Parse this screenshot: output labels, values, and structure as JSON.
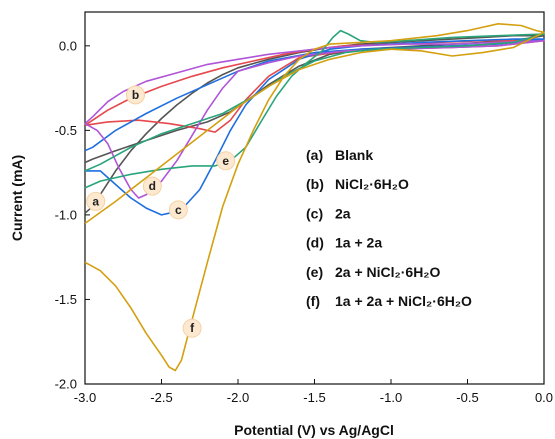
{
  "chart_data": {
    "type": "line",
    "title": "",
    "xlabel": "Potential (V) vs Ag/AgCl",
    "ylabel": "Current (mA)",
    "xlim": [
      -3.0,
      0.0
    ],
    "ylim": [
      -2.0,
      0.2
    ],
    "x_ticks": [
      -3.0,
      -2.5,
      -2.0,
      -1.5,
      -1.0,
      -0.5,
      0.0
    ],
    "x_tick_labels": [
      "-3.0",
      "-2.5",
      "-2.0",
      "-1.5",
      "-1.0",
      "-0.5",
      "0.0"
    ],
    "y_ticks": [
      0.0,
      -0.5,
      -1.0,
      -1.5,
      -2.0
    ],
    "y_tick_labels": [
      "0.0",
      "-0.5",
      "-1.0",
      "-1.5",
      "-2.0"
    ],
    "grid": false,
    "legend_position": "right",
    "legend": [
      {
        "letter": "(a)",
        "text": "Blank"
      },
      {
        "letter": "(b)",
        "text": "NiCl₂·6H₂O"
      },
      {
        "letter": "(c)",
        "text": "2a"
      },
      {
        "letter": "(d)",
        "text": "1a + 2a"
      },
      {
        "letter": "(e)",
        "text": "2a + NiCl₂·6H₂O"
      },
      {
        "letter": "(f)",
        "text": "1a + 2a  + NiCl₂·6H₂O"
      }
    ],
    "series": [
      {
        "label": "a",
        "color": "#555555",
        "label_at": [
          -2.93,
          -0.92
        ],
        "points": [
          [
            -3.0,
            -0.99
          ],
          [
            -2.95,
            -0.95
          ],
          [
            -2.9,
            -0.88
          ],
          [
            -2.8,
            -0.74
          ],
          [
            -2.7,
            -0.62
          ],
          [
            -2.6,
            -0.52
          ],
          [
            -2.5,
            -0.43
          ],
          [
            -2.4,
            -0.35
          ],
          [
            -2.3,
            -0.28
          ],
          [
            -2.2,
            -0.22
          ],
          [
            -2.1,
            -0.17
          ],
          [
            -2.0,
            -0.13
          ],
          [
            -1.8,
            -0.08
          ],
          [
            -1.6,
            -0.04
          ],
          [
            -1.4,
            -0.01
          ],
          [
            -1.2,
            0.01
          ],
          [
            -1.0,
            0.02
          ],
          [
            -0.8,
            0.03
          ],
          [
            -0.6,
            0.04
          ],
          [
            -0.4,
            0.05
          ],
          [
            -0.2,
            0.06
          ],
          [
            0.0,
            0.06
          ],
          [
            -0.2,
            0.03
          ],
          [
            -0.4,
            0.02
          ],
          [
            -0.6,
            0.01
          ],
          [
            -0.8,
            0.0
          ],
          [
            -1.0,
            -0.01
          ],
          [
            -1.2,
            -0.02
          ],
          [
            -1.4,
            -0.05
          ],
          [
            -1.6,
            -0.12
          ],
          [
            -1.8,
            -0.23
          ],
          [
            -1.95,
            -0.33
          ],
          [
            -2.05,
            -0.39
          ],
          [
            -2.2,
            -0.45
          ],
          [
            -2.4,
            -0.5
          ],
          [
            -2.6,
            -0.56
          ],
          [
            -2.8,
            -0.62
          ],
          [
            -2.95,
            -0.67
          ],
          [
            -3.0,
            -0.69
          ]
        ]
      },
      {
        "label": "b",
        "color": "#e5484d",
        "label_at": [
          -2.67,
          -0.29
        ],
        "points": [
          [
            -3.0,
            -0.47
          ],
          [
            -2.95,
            -0.44
          ],
          [
            -2.85,
            -0.38
          ],
          [
            -2.7,
            -0.31
          ],
          [
            -2.5,
            -0.24
          ],
          [
            -2.3,
            -0.18
          ],
          [
            -2.1,
            -0.13
          ],
          [
            -1.9,
            -0.09
          ],
          [
            -1.7,
            -0.05
          ],
          [
            -1.5,
            -0.02
          ],
          [
            -1.3,
            0.0
          ],
          [
            -1.0,
            0.01
          ],
          [
            -0.7,
            0.02
          ],
          [
            -0.4,
            0.03
          ],
          [
            -0.2,
            0.03
          ],
          [
            0.0,
            0.03
          ],
          [
            -0.3,
            0.0
          ],
          [
            -0.6,
            -0.01
          ],
          [
            -1.0,
            -0.02
          ],
          [
            -1.3,
            -0.03
          ],
          [
            -1.6,
            -0.07
          ],
          [
            -1.8,
            -0.18
          ],
          [
            -1.95,
            -0.32
          ],
          [
            -2.05,
            -0.44
          ],
          [
            -2.15,
            -0.51
          ],
          [
            -2.25,
            -0.49
          ],
          [
            -2.45,
            -0.46
          ],
          [
            -2.65,
            -0.44
          ],
          [
            -2.85,
            -0.45
          ],
          [
            -3.0,
            -0.47
          ]
        ]
      },
      {
        "label": "c",
        "color": "#1f6fe0",
        "label_at": [
          -2.39,
          -0.97
        ],
        "points": [
          [
            -3.0,
            -0.74
          ],
          [
            -2.9,
            -0.74
          ],
          [
            -2.8,
            -0.82
          ],
          [
            -2.7,
            -0.9
          ],
          [
            -2.6,
            -0.96
          ],
          [
            -2.5,
            -1.0
          ],
          [
            -2.45,
            -0.99
          ],
          [
            -2.35,
            -0.95
          ],
          [
            -2.25,
            -0.85
          ],
          [
            -2.15,
            -0.68
          ],
          [
            -2.05,
            -0.5
          ],
          [
            -1.95,
            -0.35
          ],
          [
            -1.8,
            -0.2
          ],
          [
            -1.6,
            -0.08
          ],
          [
            -1.4,
            -0.02
          ],
          [
            -1.2,
            0.0
          ],
          [
            -1.0,
            0.01
          ],
          [
            -0.8,
            0.02
          ],
          [
            -0.5,
            0.03
          ],
          [
            -0.2,
            0.04
          ],
          [
            0.0,
            0.04
          ],
          [
            -0.3,
            0.01
          ],
          [
            -0.6,
            0.0
          ],
          [
            -0.9,
            -0.01
          ],
          [
            -1.2,
            -0.02
          ],
          [
            -1.5,
            -0.04
          ],
          [
            -1.8,
            -0.09
          ],
          [
            -2.0,
            -0.15
          ],
          [
            -2.2,
            -0.23
          ],
          [
            -2.4,
            -0.31
          ],
          [
            -2.6,
            -0.4
          ],
          [
            -2.8,
            -0.5
          ],
          [
            -2.95,
            -0.6
          ],
          [
            -3.0,
            -0.62
          ]
        ]
      },
      {
        "label": "d",
        "color": "#b055d8",
        "label_at": [
          -2.56,
          -0.83
        ],
        "points": [
          [
            -3.0,
            -0.46
          ],
          [
            -2.95,
            -0.42
          ],
          [
            -2.85,
            -0.33
          ],
          [
            -2.75,
            -0.27
          ],
          [
            -2.6,
            -0.21
          ],
          [
            -2.4,
            -0.16
          ],
          [
            -2.2,
            -0.11
          ],
          [
            -2.0,
            -0.08
          ],
          [
            -1.8,
            -0.05
          ],
          [
            -1.6,
            -0.03
          ],
          [
            -1.4,
            -0.01
          ],
          [
            -1.2,
            0.0
          ],
          [
            -0.9,
            0.01
          ],
          [
            -0.6,
            0.01
          ],
          [
            -0.3,
            0.02
          ],
          [
            0.0,
            0.03
          ],
          [
            -0.3,
            0.0
          ],
          [
            -0.6,
            -0.01
          ],
          [
            -1.0,
            -0.02
          ],
          [
            -1.3,
            -0.03
          ],
          [
            -1.6,
            -0.06
          ],
          [
            -1.8,
            -0.1
          ],
          [
            -2.0,
            -0.15
          ],
          [
            -2.1,
            -0.25
          ],
          [
            -2.2,
            -0.38
          ],
          [
            -2.3,
            -0.53
          ],
          [
            -2.4,
            -0.68
          ],
          [
            -2.5,
            -0.8
          ],
          [
            -2.6,
            -0.88
          ],
          [
            -2.65,
            -0.9
          ],
          [
            -2.7,
            -0.85
          ],
          [
            -2.78,
            -0.72
          ],
          [
            -2.85,
            -0.58
          ],
          [
            -2.92,
            -0.5
          ],
          [
            -3.0,
            -0.46
          ]
        ]
      },
      {
        "label": "e",
        "color": "#2aa57a",
        "label_at": [
          -2.08,
          -0.68
        ],
        "points": [
          [
            -3.0,
            -0.84
          ],
          [
            -2.9,
            -0.8
          ],
          [
            -2.7,
            -0.76
          ],
          [
            -2.5,
            -0.73
          ],
          [
            -2.3,
            -0.71
          ],
          [
            -2.15,
            -0.71
          ],
          [
            -2.05,
            -0.68
          ],
          [
            -1.95,
            -0.6
          ],
          [
            -1.85,
            -0.45
          ],
          [
            -1.75,
            -0.3
          ],
          [
            -1.65,
            -0.18
          ],
          [
            -1.55,
            -0.1
          ],
          [
            -1.45,
            -0.03
          ],
          [
            -1.38,
            0.05
          ],
          [
            -1.33,
            0.09
          ],
          [
            -1.28,
            0.07
          ],
          [
            -1.2,
            0.03
          ],
          [
            -1.1,
            0.02
          ],
          [
            -0.9,
            0.03
          ],
          [
            -0.6,
            0.05
          ],
          [
            -0.3,
            0.06
          ],
          [
            0.0,
            0.07
          ],
          [
            -0.2,
            0.02
          ],
          [
            -0.5,
            0.0
          ],
          [
            -0.8,
            -0.01
          ],
          [
            -1.1,
            -0.02
          ],
          [
            -1.3,
            -0.04
          ],
          [
            -1.5,
            -0.09
          ],
          [
            -1.7,
            -0.18
          ],
          [
            -1.9,
            -0.3
          ],
          [
            -2.1,
            -0.4
          ],
          [
            -2.3,
            -0.46
          ],
          [
            -2.5,
            -0.52
          ],
          [
            -2.7,
            -0.6
          ],
          [
            -2.9,
            -0.7
          ],
          [
            -3.0,
            -0.74
          ]
        ]
      },
      {
        "label": "f",
        "color": "#d4a010",
        "label_at": [
          -2.3,
          -1.67
        ],
        "points": [
          [
            -3.0,
            -1.28
          ],
          [
            -2.9,
            -1.33
          ],
          [
            -2.8,
            -1.42
          ],
          [
            -2.7,
            -1.55
          ],
          [
            -2.6,
            -1.7
          ],
          [
            -2.5,
            -1.83
          ],
          [
            -2.45,
            -1.9
          ],
          [
            -2.41,
            -1.92
          ],
          [
            -2.37,
            -1.86
          ],
          [
            -2.3,
            -1.62
          ],
          [
            -2.2,
            -1.28
          ],
          [
            -2.1,
            -0.95
          ],
          [
            -2.0,
            -0.7
          ],
          [
            -1.9,
            -0.5
          ],
          [
            -1.8,
            -0.32
          ],
          [
            -1.7,
            -0.18
          ],
          [
            -1.6,
            -0.08
          ],
          [
            -1.5,
            -0.02
          ],
          [
            -1.4,
            0.01
          ],
          [
            -1.2,
            0.02
          ],
          [
            -1.0,
            0.03
          ],
          [
            -0.7,
            0.06
          ],
          [
            -0.5,
            0.09
          ],
          [
            -0.3,
            0.13
          ],
          [
            -0.15,
            0.12
          ],
          [
            -0.05,
            0.09
          ],
          [
            0.0,
            0.08
          ],
          [
            -0.2,
            -0.01
          ],
          [
            -0.4,
            -0.04
          ],
          [
            -0.6,
            -0.06
          ],
          [
            -0.8,
            -0.03
          ],
          [
            -1.0,
            -0.02
          ],
          [
            -1.2,
            -0.04
          ],
          [
            -1.4,
            -0.08
          ],
          [
            -1.6,
            -0.14
          ],
          [
            -1.8,
            -0.24
          ],
          [
            -2.0,
            -0.36
          ],
          [
            -2.2,
            -0.5
          ],
          [
            -2.4,
            -0.64
          ],
          [
            -2.6,
            -0.78
          ],
          [
            -2.8,
            -0.92
          ],
          [
            -3.0,
            -1.05
          ]
        ]
      }
    ]
  }
}
